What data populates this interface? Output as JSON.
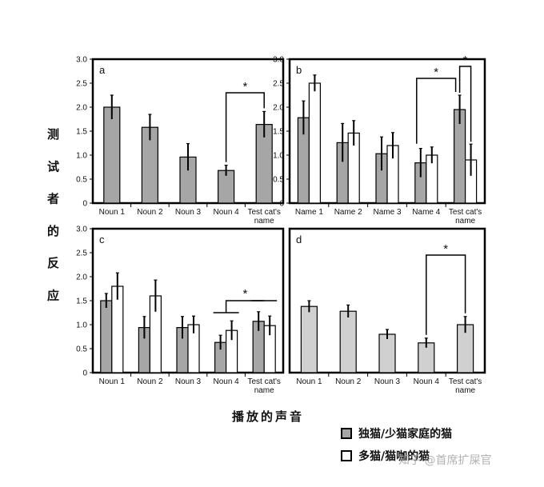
{
  "y_axis_label": "测 试 者 的 反 应",
  "x_axis_label": "播放的声音",
  "legend": [
    {
      "label": "独猫/少猫家庭的猫",
      "color": "#a6a6a6"
    },
    {
      "label": "多猫/猫咖的猫",
      "color": "#ffffff"
    }
  ],
  "watermark": "知乎 @首席扩屎官",
  "colors": {
    "dark_bar": "#a6a6a6",
    "light_bar": "#d0d0d0",
    "white_bar": "#ffffff"
  },
  "chart_data": [
    {
      "panel": "a",
      "type": "bar",
      "categories": [
        "Noun 1",
        "Noun 2",
        "Noun 3",
        "Noun 4",
        "Test cat's name"
      ],
      "ylim": [
        0,
        3.0
      ],
      "yticks": [
        "0",
        "0.5",
        "1.0",
        "1.5",
        "2.0",
        "2.5",
        "3.0"
      ],
      "series": [
        {
          "fill": "dark",
          "values": [
            2.0,
            1.58,
            0.96,
            0.68,
            1.64
          ],
          "errors": [
            0.25,
            0.27,
            0.28,
            0.11,
            0.27
          ]
        }
      ],
      "significance": [
        {
          "from": 3,
          "to": 4,
          "label": "*"
        }
      ]
    },
    {
      "panel": "b",
      "type": "bar",
      "categories": [
        "Name 1",
        "Name 2",
        "Name 3",
        "Name 4",
        "Test cat's name"
      ],
      "ylim": [
        0,
        3.0
      ],
      "yticks": [
        "0",
        "0.5",
        "1.0",
        "1.5",
        "2.0",
        "2.5",
        "3.0"
      ],
      "series": [
        {
          "fill": "dark",
          "values": [
            1.78,
            1.26,
            1.03,
            0.84,
            1.95
          ],
          "errors": [
            0.35,
            0.4,
            0.35,
            0.3,
            0.3
          ]
        },
        {
          "fill": "white",
          "values": [
            2.5,
            1.46,
            1.2,
            1.0,
            0.9
          ],
          "errors": [
            0.17,
            0.26,
            0.27,
            0.17,
            0.33
          ]
        }
      ],
      "significance": [
        {
          "from": 3,
          "to": 4,
          "label": "*"
        },
        {
          "from": 4,
          "to": 4,
          "label": "*"
        }
      ]
    },
    {
      "panel": "c",
      "type": "bar",
      "categories": [
        "Noun 1",
        "Noun 2",
        "Noun 3",
        "Noun 4",
        "Test cat's name"
      ],
      "ylim": [
        0,
        3.0
      ],
      "yticks": [
        "0",
        "0.5",
        "1.0",
        "1.5",
        "2.0",
        "2.5",
        "3.0"
      ],
      "series": [
        {
          "fill": "dark",
          "values": [
            1.5,
            0.94,
            0.94,
            0.63,
            1.07
          ],
          "errors": [
            0.15,
            0.23,
            0.23,
            0.15,
            0.2
          ]
        },
        {
          "fill": "white",
          "values": [
            1.8,
            1.6,
            1.0,
            0.88,
            0.98
          ],
          "errors": [
            0.28,
            0.33,
            0.18,
            0.2,
            0.2
          ]
        }
      ],
      "significance": [
        {
          "from": 3,
          "to": 4,
          "label": "*"
        }
      ]
    },
    {
      "panel": "d",
      "type": "bar",
      "categories": [
        "Noun 1",
        "Noun 2",
        "Noun 3",
        "Noun 4",
        "Test cat's name"
      ],
      "ylim": [
        0,
        3.0
      ],
      "yticks": [],
      "series": [
        {
          "fill": "light",
          "values": [
            1.38,
            1.28,
            0.8,
            0.62,
            1.0
          ],
          "errors": [
            0.12,
            0.13,
            0.1,
            0.1,
            0.17
          ]
        }
      ],
      "significance": [
        {
          "from": 3,
          "to": 4,
          "label": "*"
        }
      ]
    }
  ]
}
